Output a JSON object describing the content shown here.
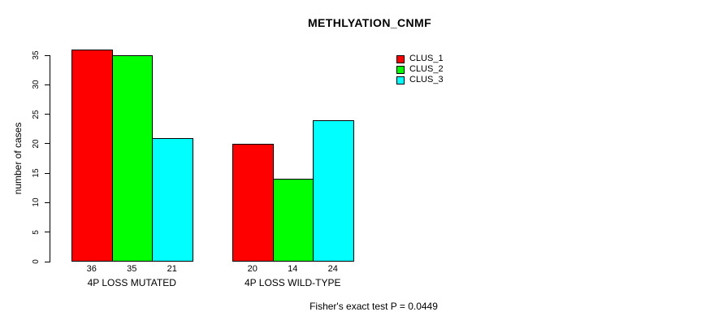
{
  "chart_data": {
    "type": "bar",
    "title": "METHLYATION_CNMF",
    "ylabel": "number of cases",
    "xlabel": "",
    "categories": [
      "4P LOSS MUTATED",
      "4P LOSS WILD-TYPE"
    ],
    "series": [
      {
        "name": "CLUS_1",
        "color": "#FF0000",
        "values": [
          36,
          20
        ]
      },
      {
        "name": "CLUS_2",
        "color": "#00FF00",
        "values": [
          35,
          14
        ]
      },
      {
        "name": "CLUS_3",
        "color": "#00FFFF",
        "values": [
          21,
          24
        ]
      }
    ],
    "ylim": [
      0,
      35
    ],
    "yticks": [
      0,
      5,
      10,
      15,
      20,
      25,
      30,
      35
    ],
    "grid": false,
    "bar_border_color": "#000000",
    "background_color": "#FFFFFF",
    "legend": {
      "position": "top-right",
      "entries": [
        "CLUS_1",
        "CLUS_2",
        "CLUS_3"
      ]
    },
    "annotation": "Fisher's exact test P = 0.0449"
  }
}
